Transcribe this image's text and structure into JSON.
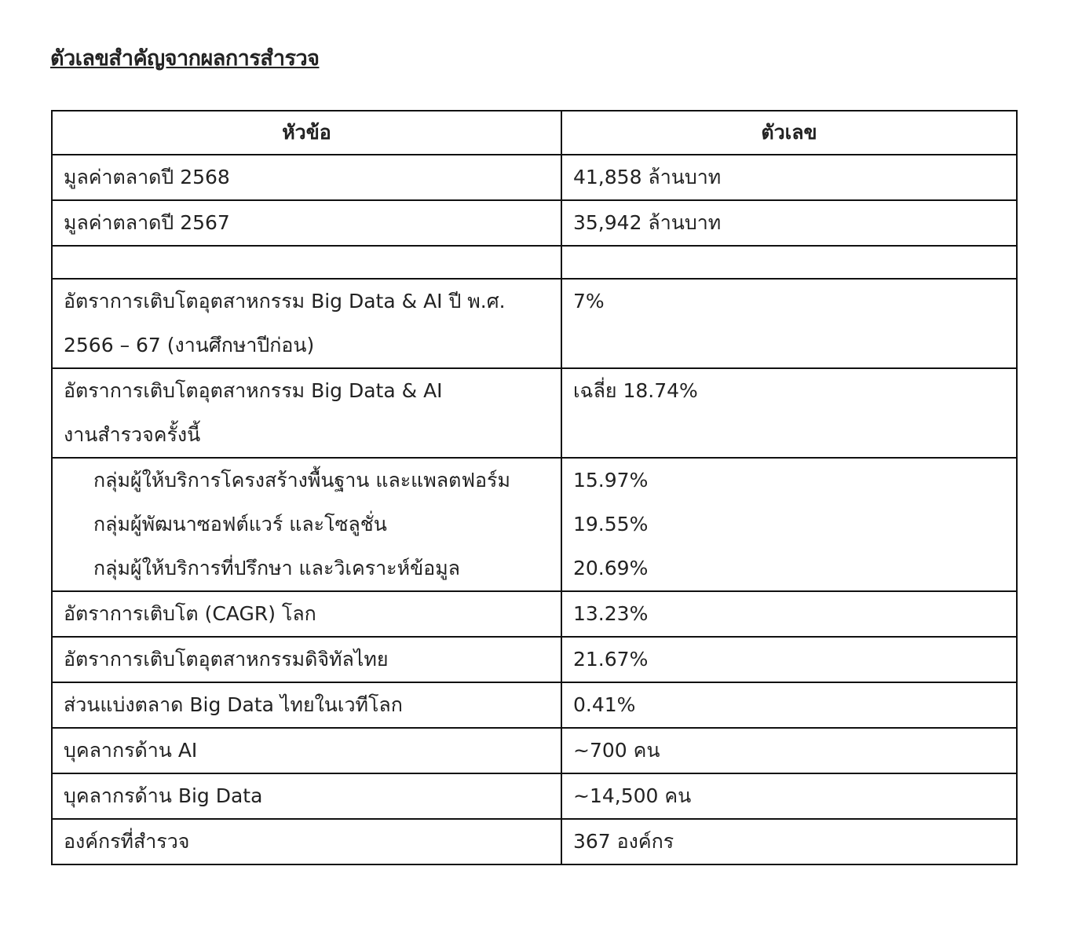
{
  "title": "ตัวเลขสำคัญจากผลการสำรวจ",
  "table": {
    "headers": [
      "หัวข้อ",
      "ตัวเลข"
    ],
    "rows": [
      {
        "topic": [
          "มูลค่าตลาดปี 2568"
        ],
        "value": [
          "41,858 ล้านบาท"
        ]
      },
      {
        "topic": [
          "มูลค่าตลาดปี 2567"
        ],
        "value": [
          "35,942 ล้านบาท"
        ]
      },
      {
        "topic": [
          ""
        ],
        "value": [
          ""
        ]
      },
      {
        "topic": [
          "อัตราการเติบโตอุตสาหกรรม Big Data & AI ปี พ.ศ.",
          "2566 – 67 (งานศึกษาปีก่อน)"
        ],
        "value": [
          "7%"
        ]
      },
      {
        "topic": [
          "อัตราการเติบโตอุตสาหกรรม Big Data & AI",
          "งานสำรวจครั้งนี้"
        ],
        "value": [
          "เฉลี่ย 18.74%"
        ]
      },
      {
        "topic": [
          "กลุ่มผู้ให้บริการโครงสร้างพื้นฐาน และแพลตฟอร์ม",
          "กลุ่มผู้พัฒนาซอฟต์แวร์ และโซลูชั่น",
          "กลุ่มผู้ให้บริการที่ปรึกษา และวิเคราะห์ข้อมูล"
        ],
        "value": [
          "15.97%",
          "19.55%",
          "20.69%"
        ]
      },
      {
        "topic": [
          "อัตราการเติบโต (CAGR) โลก"
        ],
        "value": [
          "13.23%"
        ]
      },
      {
        "topic": [
          "อัตราการเติบโตอุตสาหกรรมดิจิทัลไทย"
        ],
        "value": [
          "21.67%"
        ]
      },
      {
        "topic": [
          "ส่วนแบ่งตลาด Big Data ไทยในเวทีโลก"
        ],
        "value": [
          "0.41%"
        ]
      },
      {
        "topic": [
          "บุคลากรด้าน AI"
        ],
        "value": [
          "~700 คน"
        ]
      },
      {
        "topic": [
          "บุคลากรด้าน Big Data"
        ],
        "value": [
          "~14,500 คน"
        ]
      },
      {
        "topic": [
          "องค์กรที่สำรวจ"
        ],
        "value": [
          "367 องค์กร"
        ]
      }
    ]
  }
}
